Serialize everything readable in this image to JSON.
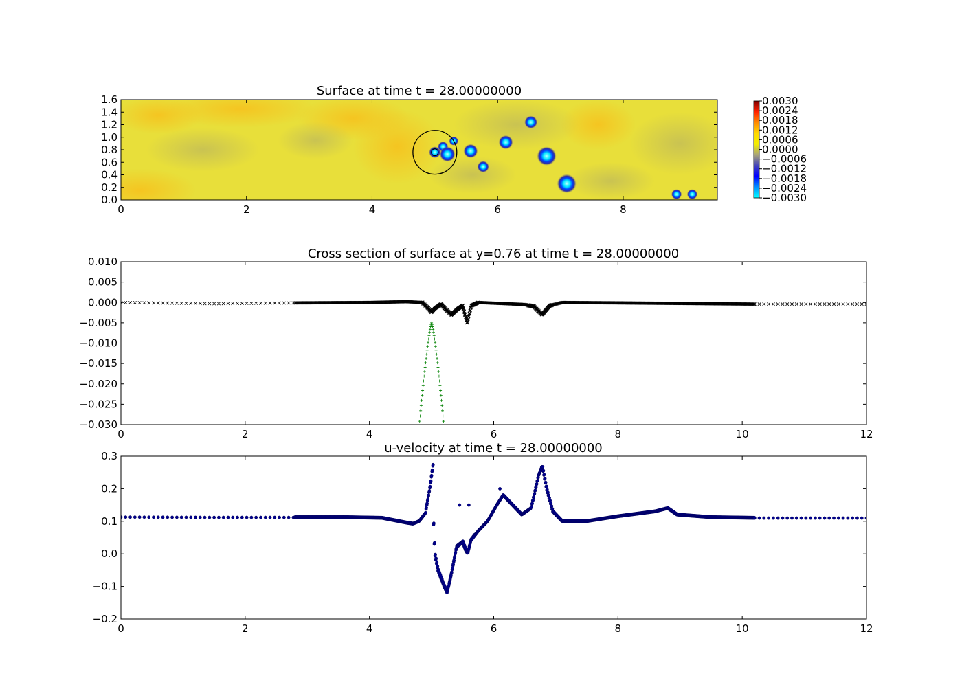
{
  "chart_data": [
    {
      "type": "heatmap",
      "title": "Surface at time t =    28.00000000",
      "xlabel": "",
      "ylabel": "",
      "xlim": [
        0,
        9.5
      ],
      "ylim": [
        0,
        1.6
      ],
      "xticks": [
        "0",
        "2",
        "4",
        "6",
        "8"
      ],
      "xtick_values": [
        0,
        2,
        4,
        6,
        8
      ],
      "yticks": [
        "0.0",
        "0.2",
        "0.4",
        "0.6",
        "0.8",
        "1.0",
        "1.2",
        "1.4",
        "1.6"
      ],
      "ytick_values": [
        0,
        0.2,
        0.4,
        0.6,
        0.8,
        1.0,
        1.2,
        1.4,
        1.6
      ],
      "background_color": "#e8df3a",
      "colorbar": {
        "min": -0.003,
        "max": 0.003,
        "labels": [
          "0.0030",
          "0.0024",
          "0.0018",
          "0.0012",
          "0.0006",
          "0.0000",
          "−0.0006",
          "−0.0012",
          "−0.0018",
          "−0.0024",
          "−0.0030"
        ],
        "stops": [
          "#7f0000",
          "#ff2000",
          "#ff8a00",
          "#ffd800",
          "#f3ee00",
          "#a7a37a",
          "#4444bb",
          "#0000ff",
          "#0090ff",
          "#00ffff"
        ]
      },
      "depressions": [
        {
          "x": 5.0,
          "y": 0.76,
          "r": 0.05
        },
        {
          "x": 5.13,
          "y": 0.85,
          "r": 0.04
        },
        {
          "x": 5.2,
          "y": 0.73,
          "r": 0.08
        },
        {
          "x": 5.3,
          "y": 0.94,
          "r": 0.03
        },
        {
          "x": 5.57,
          "y": 0.78,
          "r": 0.07
        },
        {
          "x": 5.77,
          "y": 0.53,
          "r": 0.05
        },
        {
          "x": 6.13,
          "y": 0.92,
          "r": 0.07
        },
        {
          "x": 6.53,
          "y": 1.24,
          "r": 0.06
        },
        {
          "x": 6.78,
          "y": 0.7,
          "r": 0.11
        },
        {
          "x": 7.1,
          "y": 0.26,
          "r": 0.11
        },
        {
          "x": 8.85,
          "y": 0.09,
          "r": 0.04
        },
        {
          "x": 9.1,
          "y": 0.09,
          "r": 0.04
        }
      ],
      "circle": {
        "cx": 5.0,
        "cy": 0.76,
        "r": 0.35
      }
    },
    {
      "type": "scatter",
      "title": "Cross section of surface at y=0.76 at time t =    28.00000000",
      "xlabel": "",
      "ylabel": "",
      "xlim": [
        0,
        12
      ],
      "ylim": [
        -0.03,
        0.01
      ],
      "xticks": [
        "0",
        "2",
        "4",
        "6",
        "8",
        "10",
        "12"
      ],
      "xtick_values": [
        0,
        2,
        4,
        6,
        8,
        10,
        12
      ],
      "yticks": [
        "0.010",
        "0.005",
        "0.000",
        "−0.005",
        "−0.010",
        "−0.015",
        "−0.020",
        "−0.025",
        "−0.030"
      ],
      "ytick_values": [
        0.01,
        0.005,
        0,
        -0.005,
        -0.01,
        -0.015,
        -0.02,
        -0.025,
        -0.03
      ],
      "series": [
        {
          "marker": "x",
          "color": "#000000",
          "x_range": [
            0,
            12
          ],
          "profile": [
            [
              0,
              0.0
            ],
            [
              1.5,
              -0.0003
            ],
            [
              2.8,
              -0.0001
            ],
            [
              4.0,
              0.0
            ],
            [
              4.6,
              0.0002
            ],
            [
              4.85,
              0.0
            ],
            [
              4.95,
              -0.0015
            ],
            [
              5.0,
              -0.0024
            ],
            [
              5.05,
              -0.0015
            ],
            [
              5.15,
              -0.0004
            ],
            [
              5.25,
              -0.002
            ],
            [
              5.32,
              -0.003
            ],
            [
              5.42,
              -0.0016
            ],
            [
              5.5,
              -0.0008
            ],
            [
              5.57,
              -0.005
            ],
            [
              5.64,
              -0.0008
            ],
            [
              5.75,
              0.0
            ],
            [
              6.5,
              -0.0005
            ],
            [
              6.65,
              -0.001
            ],
            [
              6.78,
              -0.003
            ],
            [
              6.9,
              -0.0008
            ],
            [
              7.1,
              0.0
            ],
            [
              8.0,
              -0.0001
            ],
            [
              10.2,
              -0.0004
            ],
            [
              12,
              -0.0004
            ]
          ]
        },
        {
          "marker": "+",
          "color": "#008000",
          "x_range": [
            4.8,
            5.2
          ],
          "peak_x": 5.0,
          "peak_y": -0.005,
          "min_y": -0.03
        }
      ]
    },
    {
      "type": "scatter",
      "title": "u-velocity at time t =    28.00000000",
      "xlabel": "",
      "ylabel": "",
      "xlim": [
        0,
        12
      ],
      "ylim": [
        -0.2,
        0.3
      ],
      "xticks": [
        "0",
        "2",
        "4",
        "6",
        "8",
        "10",
        "12"
      ],
      "xtick_values": [
        0,
        2,
        4,
        6,
        8,
        10,
        12
      ],
      "yticks": [
        "0.3",
        "0.2",
        "0.1",
        "0.0",
        "−0.1",
        "−0.2"
      ],
      "ytick_values": [
        0.3,
        0.2,
        0.1,
        0.0,
        -0.1,
        -0.2
      ],
      "series": [
        {
          "marker": "o",
          "color": "#00008b",
          "profile": [
            [
              0,
              0.113
            ],
            [
              1.5,
              0.112
            ],
            [
              2.8,
              0.112
            ],
            [
              3.6,
              0.112
            ],
            [
              4.2,
              0.11
            ],
            [
              4.6,
              0.095
            ],
            [
              4.7,
              0.092
            ],
            [
              4.8,
              0.1
            ],
            [
              4.9,
              0.125
            ],
            [
              4.97,
              0.2
            ],
            [
              5.02,
              0.27
            ],
            [
              5.03,
              0.1
            ],
            [
              5.05,
              0.0
            ],
            [
              5.1,
              -0.05
            ],
            [
              5.2,
              -0.1
            ],
            [
              5.25,
              -0.12
            ],
            [
              5.32,
              -0.06
            ],
            [
              5.4,
              0.02
            ],
            [
              5.5,
              0.035
            ],
            [
              5.55,
              0.01
            ],
            [
              5.58,
              0.0
            ],
            [
              5.63,
              0.04
            ],
            [
              5.75,
              0.07
            ],
            [
              5.9,
              0.1
            ],
            [
              6.05,
              0.15
            ],
            [
              6.15,
              0.18
            ],
            [
              6.3,
              0.15
            ],
            [
              6.45,
              0.12
            ],
            [
              6.6,
              0.14
            ],
            [
              6.72,
              0.24
            ],
            [
              6.78,
              0.27
            ],
            [
              6.85,
              0.2
            ],
            [
              6.95,
              0.13
            ],
            [
              7.1,
              0.1
            ],
            [
              7.5,
              0.1
            ],
            [
              8.0,
              0.115
            ],
            [
              8.6,
              0.13
            ],
            [
              8.8,
              0.14
            ],
            [
              8.95,
              0.12
            ],
            [
              9.5,
              0.112
            ],
            [
              10.2,
              0.11
            ],
            [
              12,
              0.11
            ]
          ],
          "outliers": [
            [
              5.45,
              0.15
            ],
            [
              5.6,
              0.15
            ],
            [
              6.1,
              0.2
            ]
          ]
        }
      ]
    }
  ]
}
